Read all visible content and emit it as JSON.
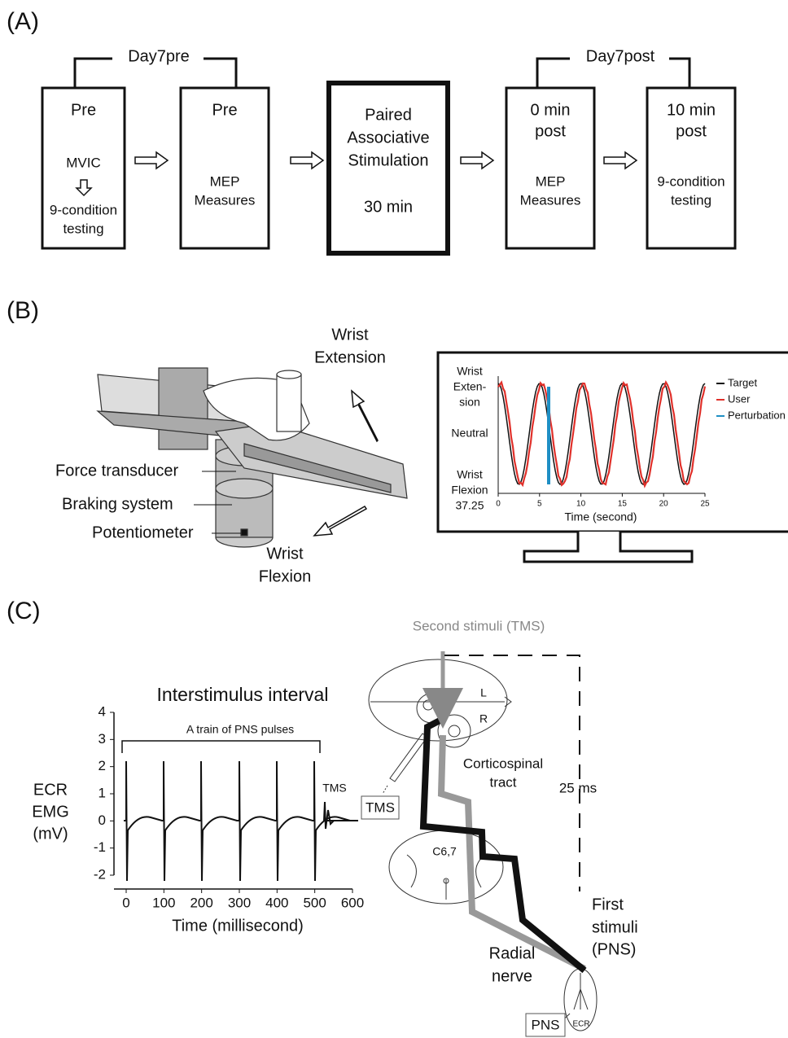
{
  "panel_a": {
    "label": "(A)",
    "groups": [
      "Day7pre",
      "Day7post"
    ],
    "boxes": [
      {
        "title": [
          "Pre"
        ],
        "items": [
          "MVIC",
          "9-condition",
          "testing"
        ]
      },
      {
        "title": [
          "Pre"
        ],
        "items": [
          "MEP",
          "Measures"
        ]
      },
      {
        "title": [
          "Paired",
          "Associative",
          "Stimulation"
        ],
        "items": [
          "30 min"
        ]
      },
      {
        "title": [
          "0 min",
          "post"
        ],
        "items": [
          "MEP",
          "Measures"
        ]
      },
      {
        "title": [
          "10 min",
          "post"
        ],
        "items": [
          "9-condition",
          "testing"
        ]
      }
    ]
  },
  "panel_b": {
    "label": "(B)",
    "extension": [
      "Wrist",
      "Extension"
    ],
    "flexion": [
      "Wrist",
      "Flexion"
    ],
    "parts": [
      "Force transducer",
      "Braking system",
      "Potentiometer"
    ],
    "plot": {
      "ylabels": {
        "top": [
          "Wrist",
          "Exten-",
          "sion"
        ],
        "middle": "Neutral",
        "bottom": [
          "Wrist",
          "Flexion",
          "37.25"
        ]
      },
      "xlabel": "Time (second)",
      "xlim": [
        0,
        25
      ],
      "xticks": [
        0,
        5,
        10,
        15,
        20,
        25
      ],
      "legend": [
        {
          "name": "Target",
          "color": "#111111"
        },
        {
          "name": "User",
          "color": "#e0302a"
        },
        {
          "name": "Perturbation",
          "color": "#1f8fc4"
        }
      ]
    }
  },
  "panel_c": {
    "label": "(C)",
    "plot": {
      "title": "Interstimulus interval",
      "bracket": "A train of PNS pulses",
      "marker": "TMS",
      "ylabel": [
        "ECR",
        "EMG",
        "(mV)"
      ],
      "xlabel": "Time (millisecond)",
      "ylim": [
        -2,
        4
      ],
      "yticks": [
        4,
        3,
        2,
        1,
        0,
        -1,
        -2
      ],
      "xlim": [
        0,
        600
      ],
      "xticks": [
        0,
        100,
        200,
        300,
        400,
        500,
        600
      ]
    },
    "diagram": {
      "second": "Second stimuli (TMS)",
      "left": "L",
      "right": "R",
      "tract": [
        "Corticospinal",
        "tract"
      ],
      "tms": "TMS",
      "delay": "25 ms",
      "level": "C6,7",
      "first": [
        "First",
        "stimuli",
        "(PNS)"
      ],
      "nerve": [
        "Radial",
        "nerve"
      ],
      "pns": "PNS",
      "muscle": "ECR"
    }
  }
}
